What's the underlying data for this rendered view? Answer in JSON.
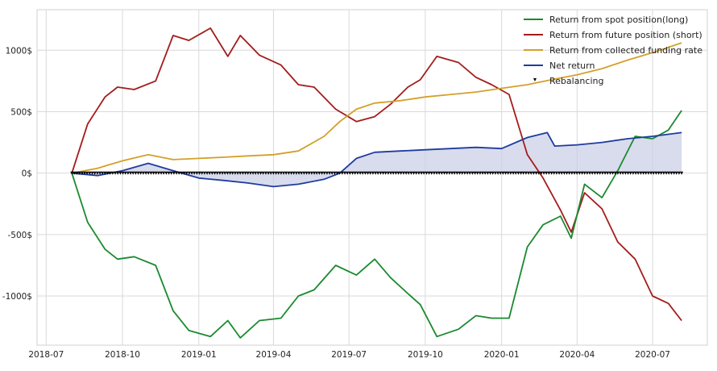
{
  "chart_data": {
    "type": "line",
    "title": "",
    "xlabel": "",
    "ylabel": "",
    "x_ticks": [
      "2018-07",
      "2018-10",
      "2019-01",
      "2019-04",
      "2019-07",
      "2019-10",
      "2020-01",
      "2020-04",
      "2020-07"
    ],
    "y_ticks": [
      {
        "value": 1000,
        "label": "1000$"
      },
      {
        "value": 500,
        "label": "500$"
      },
      {
        "value": 0,
        "label": "0$"
      },
      {
        "value": -500,
        "label": "-500$"
      },
      {
        "value": -1000,
        "label": "-1000$"
      }
    ],
    "xlim": [
      "2018-06-20",
      "2020-09-05"
    ],
    "ylim": [
      -1400,
      1330
    ],
    "grid": true,
    "legend_position": "top-right",
    "series": [
      {
        "name": "Return from spot position(long)",
        "color": "#1a8a2e",
        "x": [
          "2018-08-01",
          "2018-08-20",
          "2018-09-10",
          "2018-09-25",
          "2018-10-15",
          "2018-11-10",
          "2018-12-01",
          "2018-12-20",
          "2019-01-15",
          "2019-02-05",
          "2019-02-20",
          "2019-03-15",
          "2019-04-10",
          "2019-05-01",
          "2019-05-20",
          "2019-06-15",
          "2019-07-10",
          "2019-08-01",
          "2019-08-20",
          "2019-09-10",
          "2019-09-25",
          "2019-10-15",
          "2019-11-10",
          "2019-12-01",
          "2019-12-20",
          "2020-01-10",
          "2020-02-01",
          "2020-02-20",
          "2020-03-12",
          "2020-03-25",
          "2020-04-10",
          "2020-05-01",
          "2020-05-20",
          "2020-06-10",
          "2020-07-01",
          "2020-07-20",
          "2020-08-05"
        ],
        "values": [
          0,
          -400,
          -620,
          -700,
          -680,
          -750,
          -1120,
          -1280,
          -1330,
          -1200,
          -1340,
          -1200,
          -1180,
          -1000,
          -950,
          -750,
          -830,
          -700,
          -850,
          -980,
          -1070,
          -1330,
          -1270,
          -1160,
          -1180,
          -1180,
          -600,
          -420,
          -350,
          -530,
          -90,
          -200,
          20,
          300,
          280,
          350,
          510
        ]
      },
      {
        "name": "Return from future position (short)",
        "color": "#a31d1d",
        "x": [
          "2018-08-01",
          "2018-08-20",
          "2018-09-10",
          "2018-09-25",
          "2018-10-15",
          "2018-11-10",
          "2018-12-01",
          "2018-12-20",
          "2019-01-15",
          "2019-02-05",
          "2019-02-20",
          "2019-03-15",
          "2019-04-10",
          "2019-05-01",
          "2019-05-20",
          "2019-06-15",
          "2019-07-10",
          "2019-08-01",
          "2019-08-20",
          "2019-09-10",
          "2019-09-25",
          "2019-10-15",
          "2019-11-10",
          "2019-12-01",
          "2019-12-20",
          "2020-01-10",
          "2020-02-01",
          "2020-02-20",
          "2020-03-12",
          "2020-03-25",
          "2020-04-10",
          "2020-05-01",
          "2020-05-20",
          "2020-06-10",
          "2020-07-01",
          "2020-07-20",
          "2020-08-05"
        ],
        "values": [
          0,
          400,
          620,
          700,
          680,
          750,
          1120,
          1080,
          1180,
          950,
          1120,
          960,
          880,
          720,
          700,
          520,
          420,
          460,
          560,
          700,
          760,
          950,
          900,
          780,
          720,
          640,
          150,
          -40,
          -300,
          -480,
          -160,
          -290,
          -560,
          -700,
          -1000,
          -1060,
          -1200
        ]
      },
      {
        "name": "Return from collected funding rate",
        "color": "#d4a02a",
        "x": [
          "2018-08-01",
          "2018-09-01",
          "2018-10-01",
          "2018-11-01",
          "2018-12-01",
          "2019-01-01",
          "2019-02-01",
          "2019-03-01",
          "2019-04-01",
          "2019-05-01",
          "2019-06-01",
          "2019-06-20",
          "2019-07-10",
          "2019-08-01",
          "2019-09-01",
          "2019-10-01",
          "2019-11-01",
          "2019-12-01",
          "2020-01-01",
          "2020-02-01",
          "2020-03-01",
          "2020-04-01",
          "2020-05-01",
          "2020-06-01",
          "2020-07-01",
          "2020-08-05"
        ],
        "values": [
          0,
          40,
          100,
          150,
          110,
          120,
          130,
          140,
          150,
          180,
          300,
          420,
          520,
          570,
          590,
          620,
          640,
          660,
          690,
          720,
          760,
          800,
          850,
          920,
          980,
          1060
        ]
      },
      {
        "name": "Net return",
        "color": "#1f3c9e",
        "fill": "#c7cde6",
        "x": [
          "2018-08-01",
          "2018-09-01",
          "2018-10-01",
          "2018-11-01",
          "2018-12-01",
          "2019-01-01",
          "2019-02-01",
          "2019-03-01",
          "2019-04-01",
          "2019-05-01",
          "2019-06-01",
          "2019-06-20",
          "2019-07-10",
          "2019-08-01",
          "2019-09-01",
          "2019-10-01",
          "2019-11-01",
          "2019-12-01",
          "2020-01-01",
          "2020-02-01",
          "2020-02-25",
          "2020-03-05",
          "2020-04-01",
          "2020-05-01",
          "2020-06-01",
          "2020-07-01",
          "2020-08-05"
        ],
        "values": [
          0,
          -20,
          20,
          80,
          20,
          -40,
          -60,
          -80,
          -110,
          -90,
          -50,
          0,
          120,
          170,
          180,
          190,
          200,
          210,
          200,
          290,
          330,
          220,
          230,
          250,
          280,
          300,
          330
        ]
      },
      {
        "name": "Rebalancing",
        "color": "#000000",
        "marker": "triangle-down"
      }
    ],
    "rebalancing": {
      "from": "2018-08-01",
      "to": "2020-08-05",
      "value": 0,
      "count": 240
    }
  }
}
